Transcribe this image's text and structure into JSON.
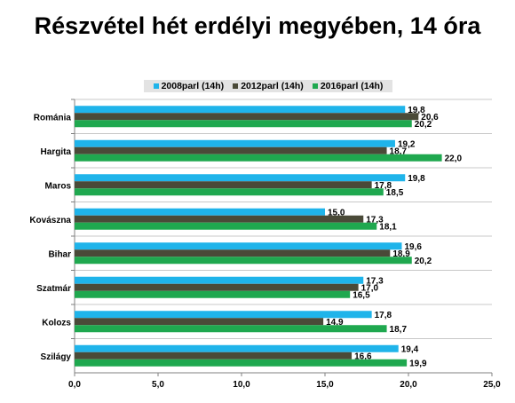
{
  "chart_data": {
    "type": "bar",
    "orientation": "horizontal",
    "title": "Részvétel hét erdélyi megyében, 14 óra",
    "categories": [
      "Románia",
      "Hargita",
      "Maros",
      "Kovászna",
      "Bihar",
      "Szatmár",
      "Kolozs",
      "Szilágy"
    ],
    "series": [
      {
        "name": "2008parl (14h)",
        "color": "#1fb4ea",
        "values": [
          19.8,
          19.2,
          19.8,
          15.0,
          19.6,
          17.3,
          17.8,
          19.4
        ]
      },
      {
        "name": "2012parl (14h)",
        "color": "#4a4a38",
        "values": [
          20.6,
          18.7,
          17.8,
          17.3,
          18.9,
          17.0,
          14.9,
          16.6
        ]
      },
      {
        "name": "2016parl (14h)",
        "color": "#1fa84f",
        "values": [
          20.2,
          22.0,
          18.5,
          18.1,
          20.2,
          16.5,
          18.7,
          19.9
        ]
      }
    ],
    "xlim": [
      0,
      25
    ],
    "x_ticks": [
      "0,0",
      "5,0",
      "10,0",
      "15,0",
      "20,0",
      "25,0"
    ],
    "legend_position": "top",
    "grid": true
  }
}
